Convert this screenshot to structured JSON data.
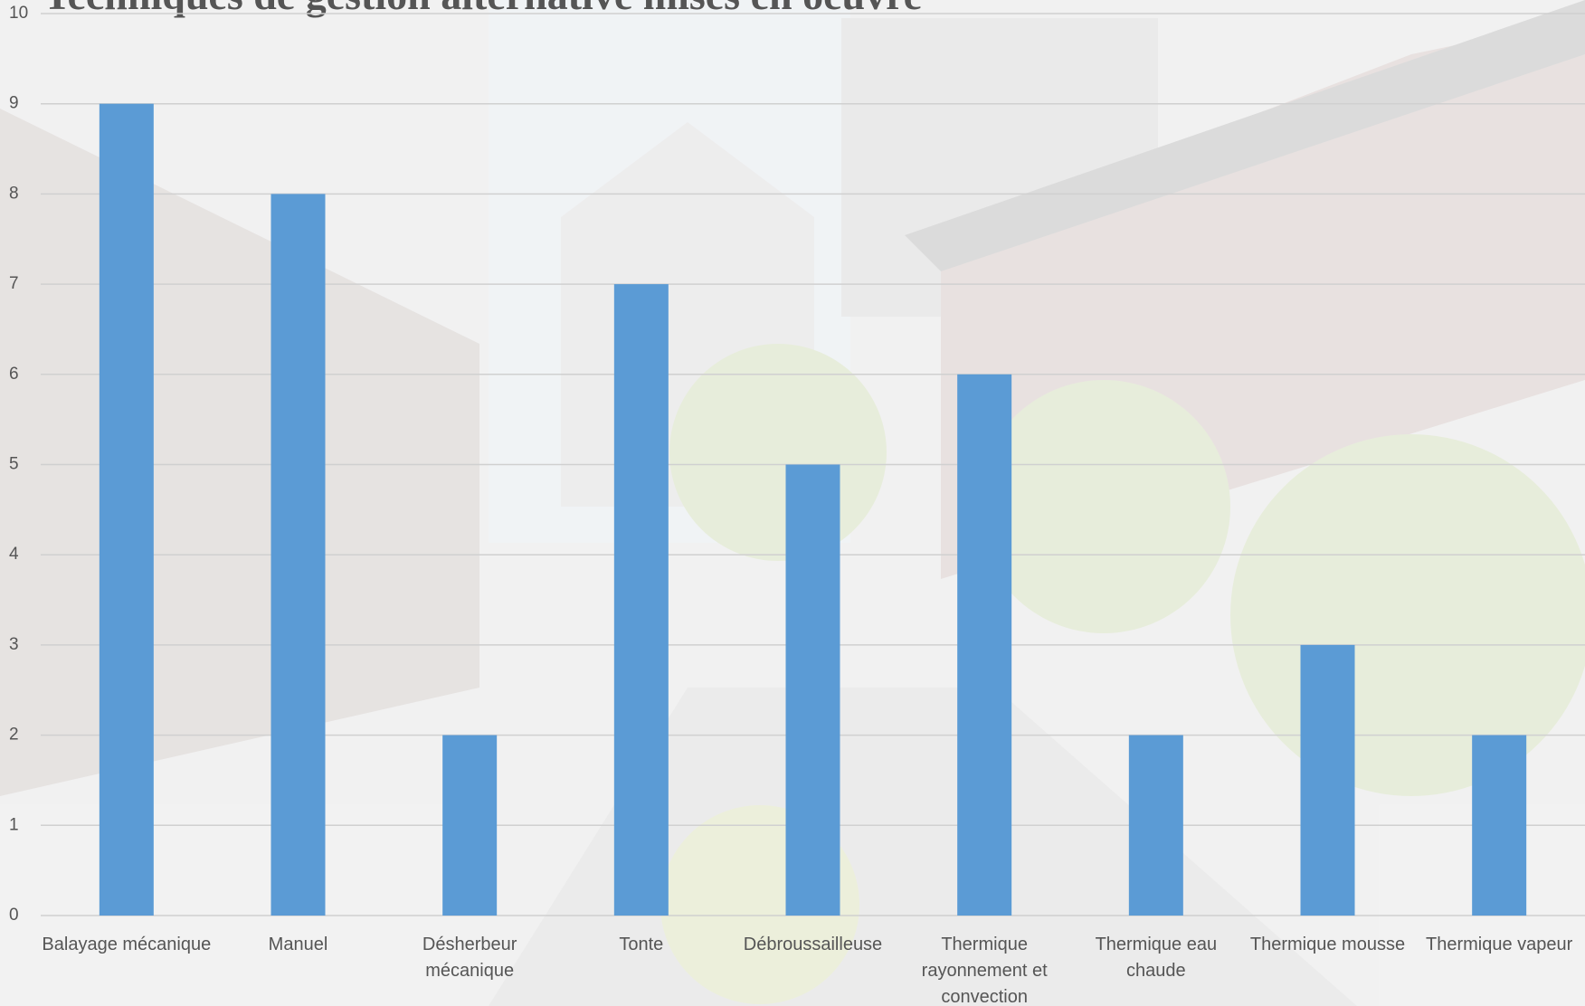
{
  "chart_data": {
    "type": "bar",
    "title": "Techniques de gestion alternative mises en oeuvre",
    "categories": [
      "Balayage mécanique",
      "Manuel",
      "Désherbeur mécanique",
      "Tonte",
      "Débroussailleuse",
      "Thermique rayonnement et convection",
      "Thermique eau chaude",
      "Thermique mousse",
      "Thermique vapeur"
    ],
    "values": [
      9,
      8,
      2,
      7,
      5,
      6,
      2,
      3,
      2
    ],
    "color": "#5b9bd5",
    "ylim": [
      0,
      10
    ],
    "yticks": [
      0,
      1,
      2,
      3,
      4,
      5,
      6,
      7,
      8,
      9,
      10
    ],
    "grid": true
  }
}
